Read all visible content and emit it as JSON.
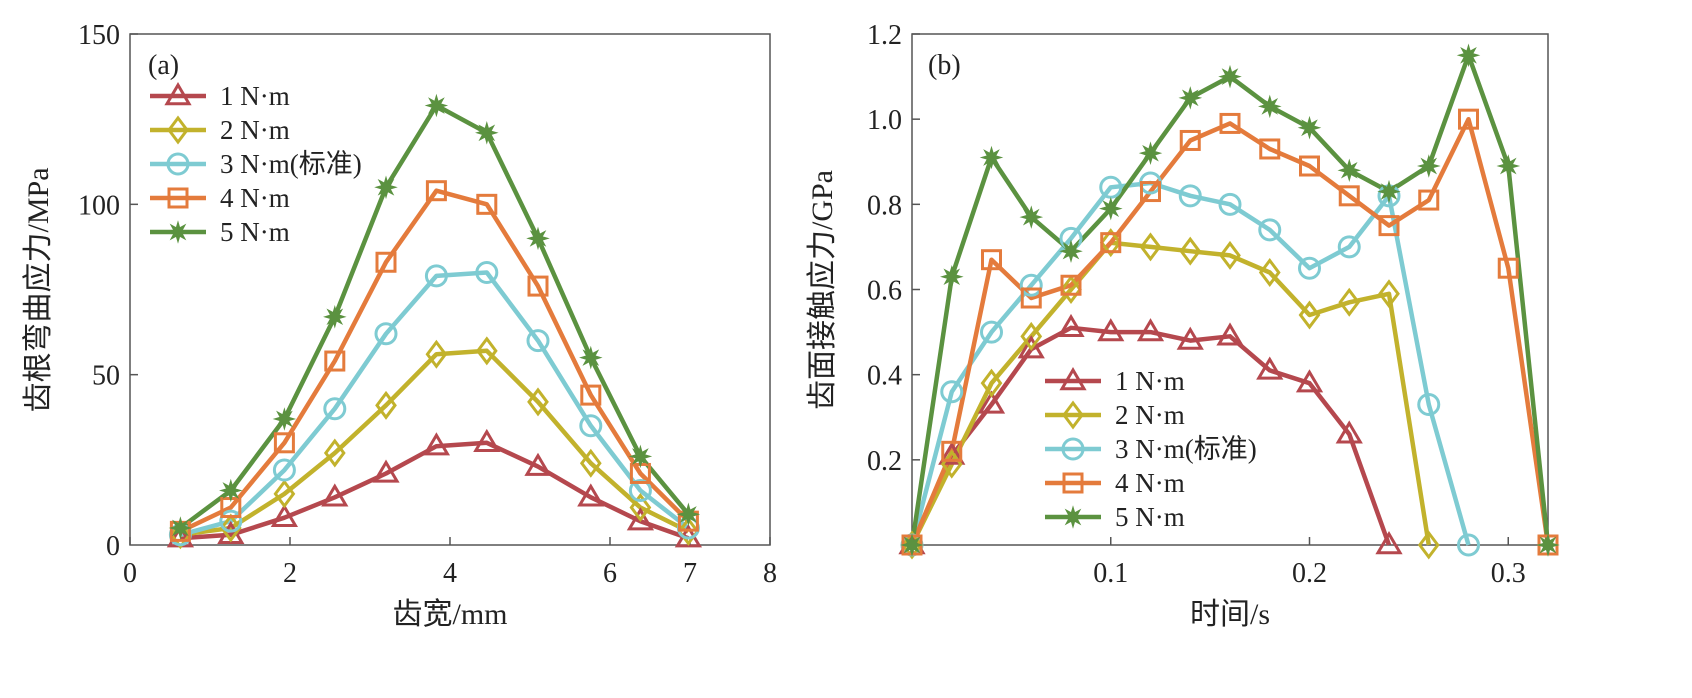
{
  "chart_data": [
    {
      "type": "line",
      "panel_label": "(a)",
      "xlabel": "齿宽/mm",
      "ylabel": "齿根弯曲应力/MPa",
      "xlim": [
        0,
        8
      ],
      "ylim": [
        0,
        150
      ],
      "xticks": [
        0,
        2,
        4,
        6,
        7,
        8
      ],
      "xtick_labels": [
        "0",
        "2",
        "4",
        "6",
        "7",
        "8"
      ],
      "yticks": [
        50,
        100,
        150
      ],
      "ytick_labels": [
        "50",
        "100",
        "150"
      ],
      "legend_position": "top-left",
      "x": [
        0.63,
        1.26,
        1.93,
        2.56,
        3.2,
        3.83,
        4.46,
        5.1,
        5.76,
        6.38,
        6.98
      ],
      "series": [
        {
          "name": "1 N·m",
          "color": "#b5484e",
          "marker": "triangle",
          "values": [
            2,
            3,
            8,
            14,
            21,
            29,
            30,
            23,
            14,
            7,
            2
          ]
        },
        {
          "name": "2 N·m",
          "color": "#c2b22c",
          "marker": "diamond",
          "values": [
            3,
            5,
            15,
            27,
            41,
            56,
            57,
            42,
            24,
            11,
            4
          ]
        },
        {
          "name": "3 N·m(标准)",
          "color": "#7ecbd2",
          "marker": "circle",
          "values": [
            3,
            7,
            22,
            40,
            62,
            79,
            80,
            60,
            35,
            16,
            5
          ]
        },
        {
          "name": "4 N·m",
          "color": "#e47b3c",
          "marker": "square",
          "values": [
            4,
            11,
            30,
            54,
            83,
            104,
            100,
            76,
            44,
            21,
            7
          ]
        },
        {
          "name": "5 N·m",
          "color": "#5b9240",
          "marker": "star",
          "values": [
            5,
            16,
            37,
            67,
            105,
            129,
            121,
            90,
            55,
            26,
            9
          ]
        }
      ]
    },
    {
      "type": "line",
      "panel_label": "(b)",
      "xlabel": "时间/s",
      "ylabel": "齿面接触应力/GPa",
      "xlim": [
        0,
        0.32
      ],
      "ylim": [
        0,
        1.2
      ],
      "xticks": [
        0.1,
        0.2,
        0.3
      ],
      "xtick_labels": [
        "0.1",
        "0.2",
        "0.3"
      ],
      "yticks": [
        0.2,
        0.4,
        0.6,
        0.8,
        1.0,
        1.2
      ],
      "ytick_labels": [
        "0.2",
        "0.4",
        "0.6",
        "0.8",
        "1.0",
        "1.2"
      ],
      "legend_position": "bottom-center",
      "series": [
        {
          "name": "1 N·m",
          "color": "#b5484e",
          "marker": "triangle",
          "x": [
            0,
            0.02,
            0.04,
            0.06,
            0.08,
            0.1,
            0.12,
            0.14,
            0.16,
            0.18,
            0.2,
            0.22,
            0.24
          ],
          "values": [
            0,
            0.21,
            0.33,
            0.46,
            0.51,
            0.5,
            0.5,
            0.48,
            0.49,
            0.41,
            0.38,
            0.26,
            0
          ]
        },
        {
          "name": "2 N·m",
          "color": "#c2b22c",
          "marker": "diamond",
          "x": [
            0,
            0.02,
            0.04,
            0.06,
            0.08,
            0.1,
            0.12,
            0.14,
            0.16,
            0.18,
            0.2,
            0.22,
            0.24,
            0.26
          ],
          "values": [
            0,
            0.19,
            0.38,
            0.49,
            0.6,
            0.71,
            0.7,
            0.69,
            0.68,
            0.64,
            0.54,
            0.57,
            0.59,
            0
          ]
        },
        {
          "name": "3 N·m(标准)",
          "color": "#7ecbd2",
          "marker": "circle",
          "x": [
            0,
            0.02,
            0.04,
            0.06,
            0.08,
            0.1,
            0.12,
            0.14,
            0.16,
            0.18,
            0.2,
            0.22,
            0.24,
            0.26,
            0.28
          ],
          "values": [
            0,
            0.36,
            0.5,
            0.61,
            0.72,
            0.84,
            0.85,
            0.82,
            0.8,
            0.74,
            0.65,
            0.7,
            0.82,
            0.33,
            0
          ]
        },
        {
          "name": "4 N·m",
          "color": "#e47b3c",
          "marker": "square",
          "x": [
            0,
            0.02,
            0.04,
            0.06,
            0.08,
            0.1,
            0.12,
            0.14,
            0.16,
            0.18,
            0.2,
            0.22,
            0.24,
            0.26,
            0.28,
            0.3,
            0.32
          ],
          "values": [
            0,
            0.22,
            0.67,
            0.58,
            0.61,
            0.71,
            0.83,
            0.95,
            0.99,
            0.93,
            0.89,
            0.82,
            0.75,
            0.81,
            1.0,
            0.65,
            0
          ]
        },
        {
          "name": "5 N·m",
          "color": "#5b9240",
          "marker": "star",
          "x": [
            0,
            0.02,
            0.04,
            0.06,
            0.08,
            0.1,
            0.12,
            0.14,
            0.16,
            0.18,
            0.2,
            0.22,
            0.24,
            0.26,
            0.28,
            0.3,
            0.32
          ],
          "values": [
            0,
            0.63,
            0.91,
            0.77,
            0.69,
            0.79,
            0.92,
            1.05,
            1.1,
            1.03,
            0.98,
            0.88,
            0.83,
            0.89,
            1.15,
            0.89,
            0
          ]
        }
      ]
    }
  ]
}
